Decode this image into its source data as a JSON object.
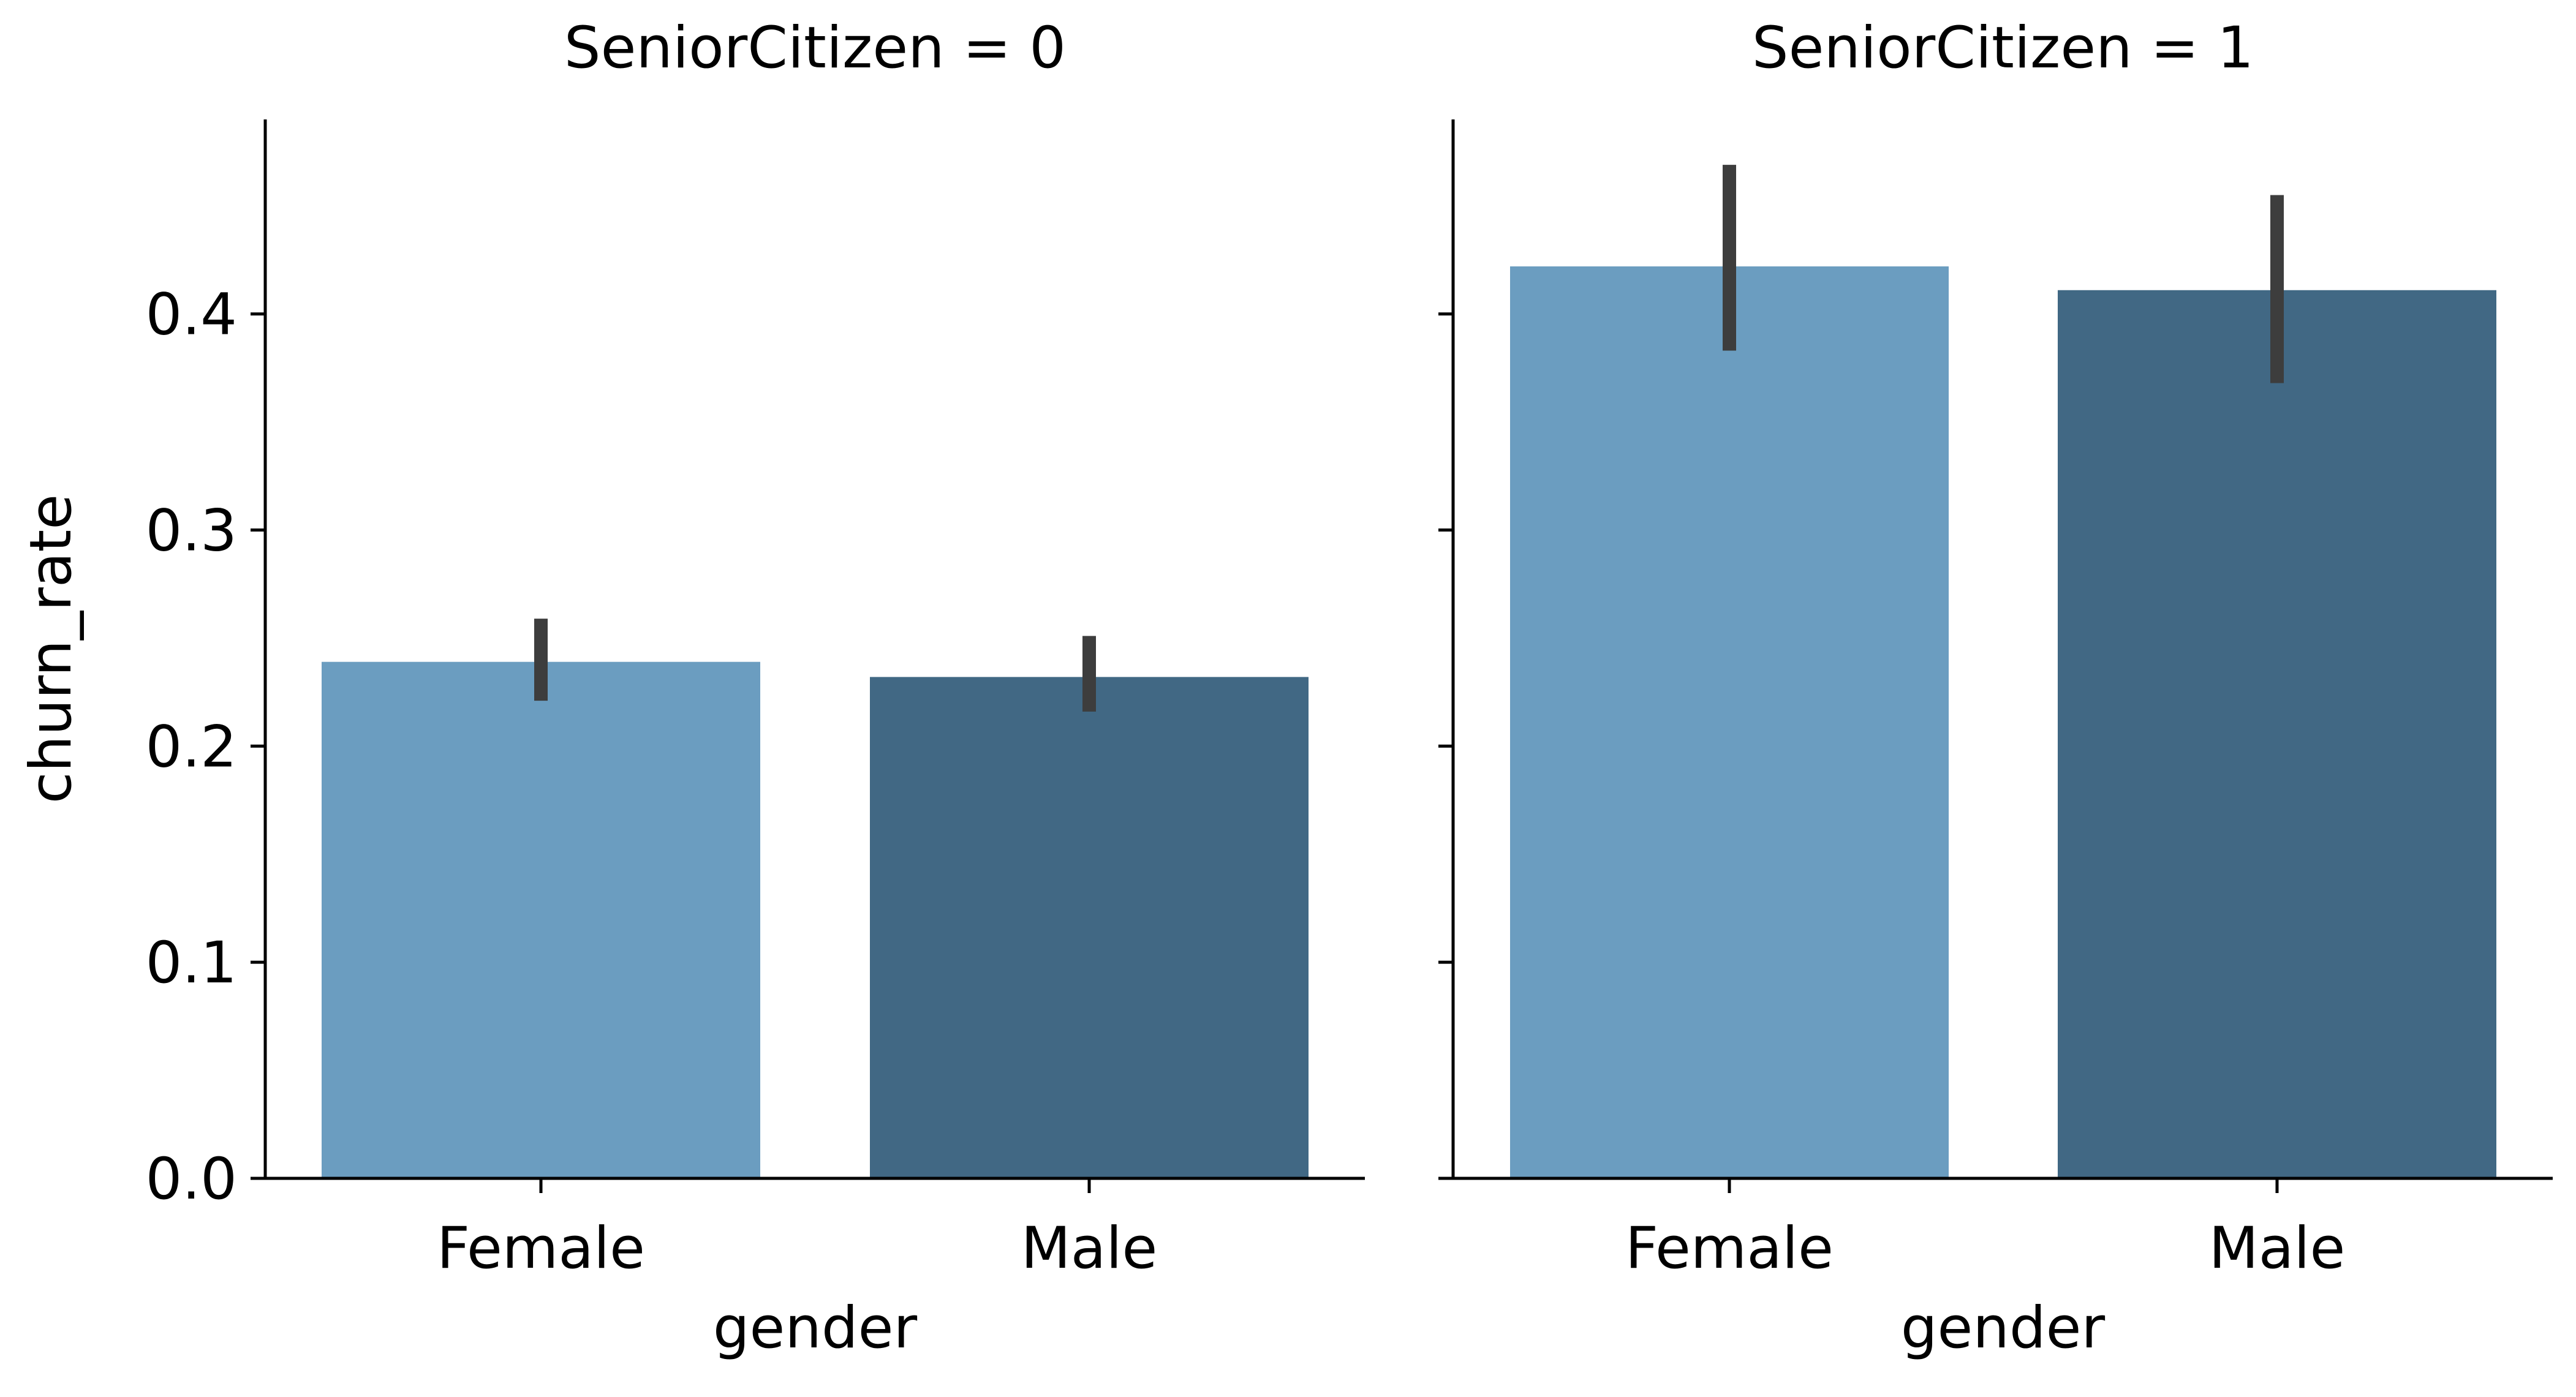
{
  "chart_data": [
    {
      "type": "bar",
      "title": "SeniorCitizen = 0",
      "xlabel": "gender",
      "ylabel": "churn_rate",
      "categories": [
        "Female",
        "Male"
      ],
      "values": [
        0.239,
        0.232
      ],
      "error_bars": [
        [
          0.221,
          0.259
        ],
        [
          0.216,
          0.251
        ]
      ],
      "yticks": [
        "0.0",
        "0.1",
        "0.2",
        "0.3",
        "0.4"
      ],
      "ylim": [
        0,
        0.49
      ],
      "grid": false
    },
    {
      "type": "bar",
      "title": "SeniorCitizen = 1",
      "xlabel": "gender",
      "ylabel": "",
      "categories": [
        "Female",
        "Male"
      ],
      "values": [
        0.422,
        0.411
      ],
      "error_bars": [
        [
          0.383,
          0.469
        ],
        [
          0.368,
          0.455
        ]
      ],
      "yticks": [],
      "ylim": [
        0,
        0.49
      ],
      "grid": false
    }
  ],
  "colors": {
    "female_bar": "#6b9dc0",
    "male_bar": "#416884",
    "error_bar": "#3d3d3d",
    "axis": "#000000"
  }
}
